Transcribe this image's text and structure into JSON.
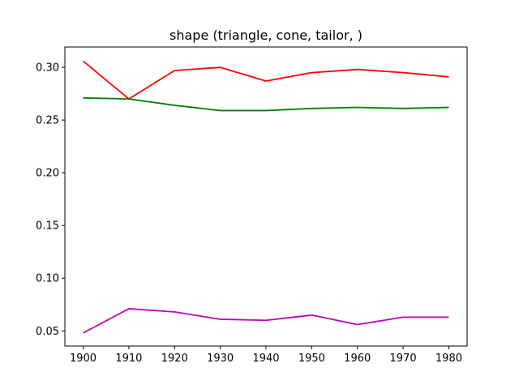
{
  "chart_data": {
    "type": "line",
    "title": "shape (triangle, cone, tailor, )",
    "xlabel": "",
    "ylabel": "",
    "x": [
      1900,
      1910,
      1920,
      1930,
      1940,
      1950,
      1960,
      1970,
      1980
    ],
    "xticks": [
      1900,
      1910,
      1920,
      1930,
      1940,
      1950,
      1960,
      1970,
      1980
    ],
    "yticks": [
      0.05,
      0.1,
      0.15,
      0.2,
      0.25,
      0.3
    ],
    "ytick_labels": [
      "0.05",
      "0.10",
      "0.15",
      "0.20",
      "0.25",
      "0.30"
    ],
    "xlim": [
      1896,
      1984
    ],
    "ylim": [
      0.0356,
      0.3193
    ],
    "grid": false,
    "legend": "none",
    "series": [
      {
        "color": "#ff0000",
        "values": [
          0.306,
          0.27,
          0.297,
          0.3,
          0.287,
          0.295,
          0.298,
          0.295,
          0.291
        ]
      },
      {
        "color": "#008000",
        "values": [
          0.271,
          0.27,
          0.264,
          0.259,
          0.259,
          0.261,
          0.262,
          0.261,
          0.262
        ]
      },
      {
        "color": "#bf00bf",
        "values": [
          0.048,
          0.071,
          0.068,
          0.061,
          0.06,
          0.065,
          0.056,
          0.063,
          0.063
        ]
      }
    ]
  }
}
